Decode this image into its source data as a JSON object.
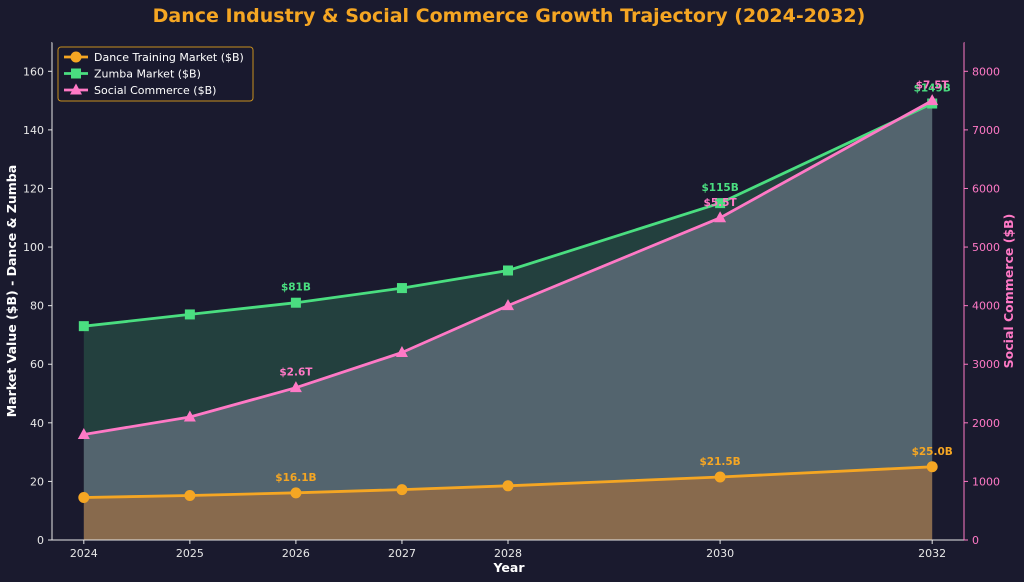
{
  "chart_data": {
    "type": "line",
    "title": "Dance Industry & Social Commerce Growth Trajectory (2024-2032)",
    "xlabel": "Year",
    "ylabel": "Market Value ($B) - Dance & Zumba",
    "y2label": "Social Commerce ($B)",
    "x": [
      2024,
      2025,
      2026,
      2027,
      2028,
      2030,
      2032
    ],
    "ylim": [
      0,
      170
    ],
    "y2lim": [
      0,
      8500
    ],
    "yticks": [
      0,
      20,
      40,
      60,
      80,
      100,
      120,
      140,
      160
    ],
    "y2ticks": [
      0,
      1000,
      2000,
      3000,
      4000,
      5000,
      6000,
      7000,
      8000
    ],
    "legend_position": "top-left",
    "grid": false,
    "series": [
      {
        "name": "Dance Training Market ($B)",
        "axis": "left",
        "color": "#f5a623",
        "marker": "circle",
        "values": [
          14.5,
          15.2,
          16.1,
          17.2,
          18.5,
          21.5,
          25.0
        ]
      },
      {
        "name": "Zumba Market ($B)",
        "axis": "left",
        "color": "#4ade80",
        "marker": "square",
        "values": [
          73,
          77,
          81,
          86,
          92,
          115,
          149
        ]
      },
      {
        "name": "Social Commerce ($B)",
        "axis": "right",
        "color": "#ff79c6",
        "marker": "triangle",
        "values": [
          1800,
          2100,
          2600,
          3200,
          4000,
          5500,
          7500
        ]
      }
    ],
    "annotations": [
      {
        "series": 0,
        "x": 2026,
        "text": "$16.1B"
      },
      {
        "series": 0,
        "x": 2030,
        "text": "$21.5B"
      },
      {
        "series": 0,
        "x": 2032,
        "text": "$25.0B"
      },
      {
        "series": 1,
        "x": 2026,
        "text": "$81B"
      },
      {
        "series": 1,
        "x": 2030,
        "text": "$115B"
      },
      {
        "series": 1,
        "x": 2032,
        "text": "$149B"
      },
      {
        "series": 2,
        "x": 2026,
        "text": "$2.6T"
      },
      {
        "series": 2,
        "x": 2030,
        "text": "$5.5T"
      },
      {
        "series": 2,
        "x": 2032,
        "text": "$7.5T"
      }
    ]
  }
}
